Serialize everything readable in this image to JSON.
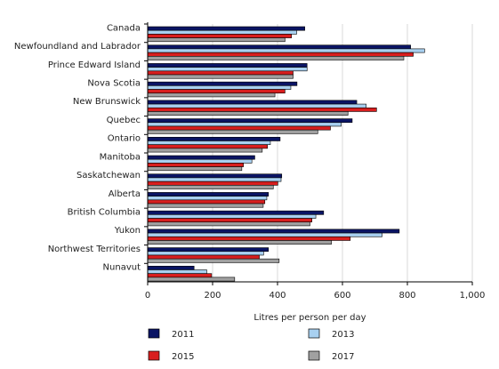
{
  "chart_data": {
    "type": "bar",
    "orientation": "horizontal",
    "categories": [
      "Canada",
      "Newfoundland and Labrador",
      "Prince Edward Island",
      "Nova Scotia",
      "New Brunswick",
      "Quebec",
      "Ontario",
      "Manitoba",
      "Saskatchewan",
      "Alberta",
      "British Columbia",
      "Yukon",
      "Northwest Territories",
      "Nunavut"
    ],
    "series": [
      {
        "name": "2011",
        "color": "#0a1464",
        "values": [
          484,
          810,
          491,
          460,
          644,
          630,
          408,
          330,
          413,
          372,
          542,
          775,
          372,
          143
        ]
      },
      {
        "name": "2013",
        "color": "#a8d0f0",
        "values": [
          459,
          853,
          491,
          441,
          673,
          596,
          378,
          321,
          411,
          367,
          518,
          722,
          357,
          182
        ]
      },
      {
        "name": "2015",
        "color": "#d81e1e",
        "values": [
          443,
          818,
          448,
          423,
          705,
          563,
          369,
          295,
          401,
          361,
          506,
          624,
          344,
          197
        ]
      },
      {
        "name": "2017",
        "color": "#a0a0a0",
        "values": [
          423,
          789,
          448,
          392,
          617,
          524,
          353,
          290,
          387,
          356,
          500,
          566,
          405,
          268
        ]
      }
    ],
    "xlabel": "Litres per person per day",
    "xlim": [
      0,
      1000
    ],
    "xticks": [
      0,
      200,
      400,
      600,
      800,
      1000
    ],
    "xtick_labels": [
      "0",
      "200",
      "400",
      "600",
      "800",
      "1,000"
    ],
    "grid": "vertical",
    "legend_position": "bottom"
  }
}
